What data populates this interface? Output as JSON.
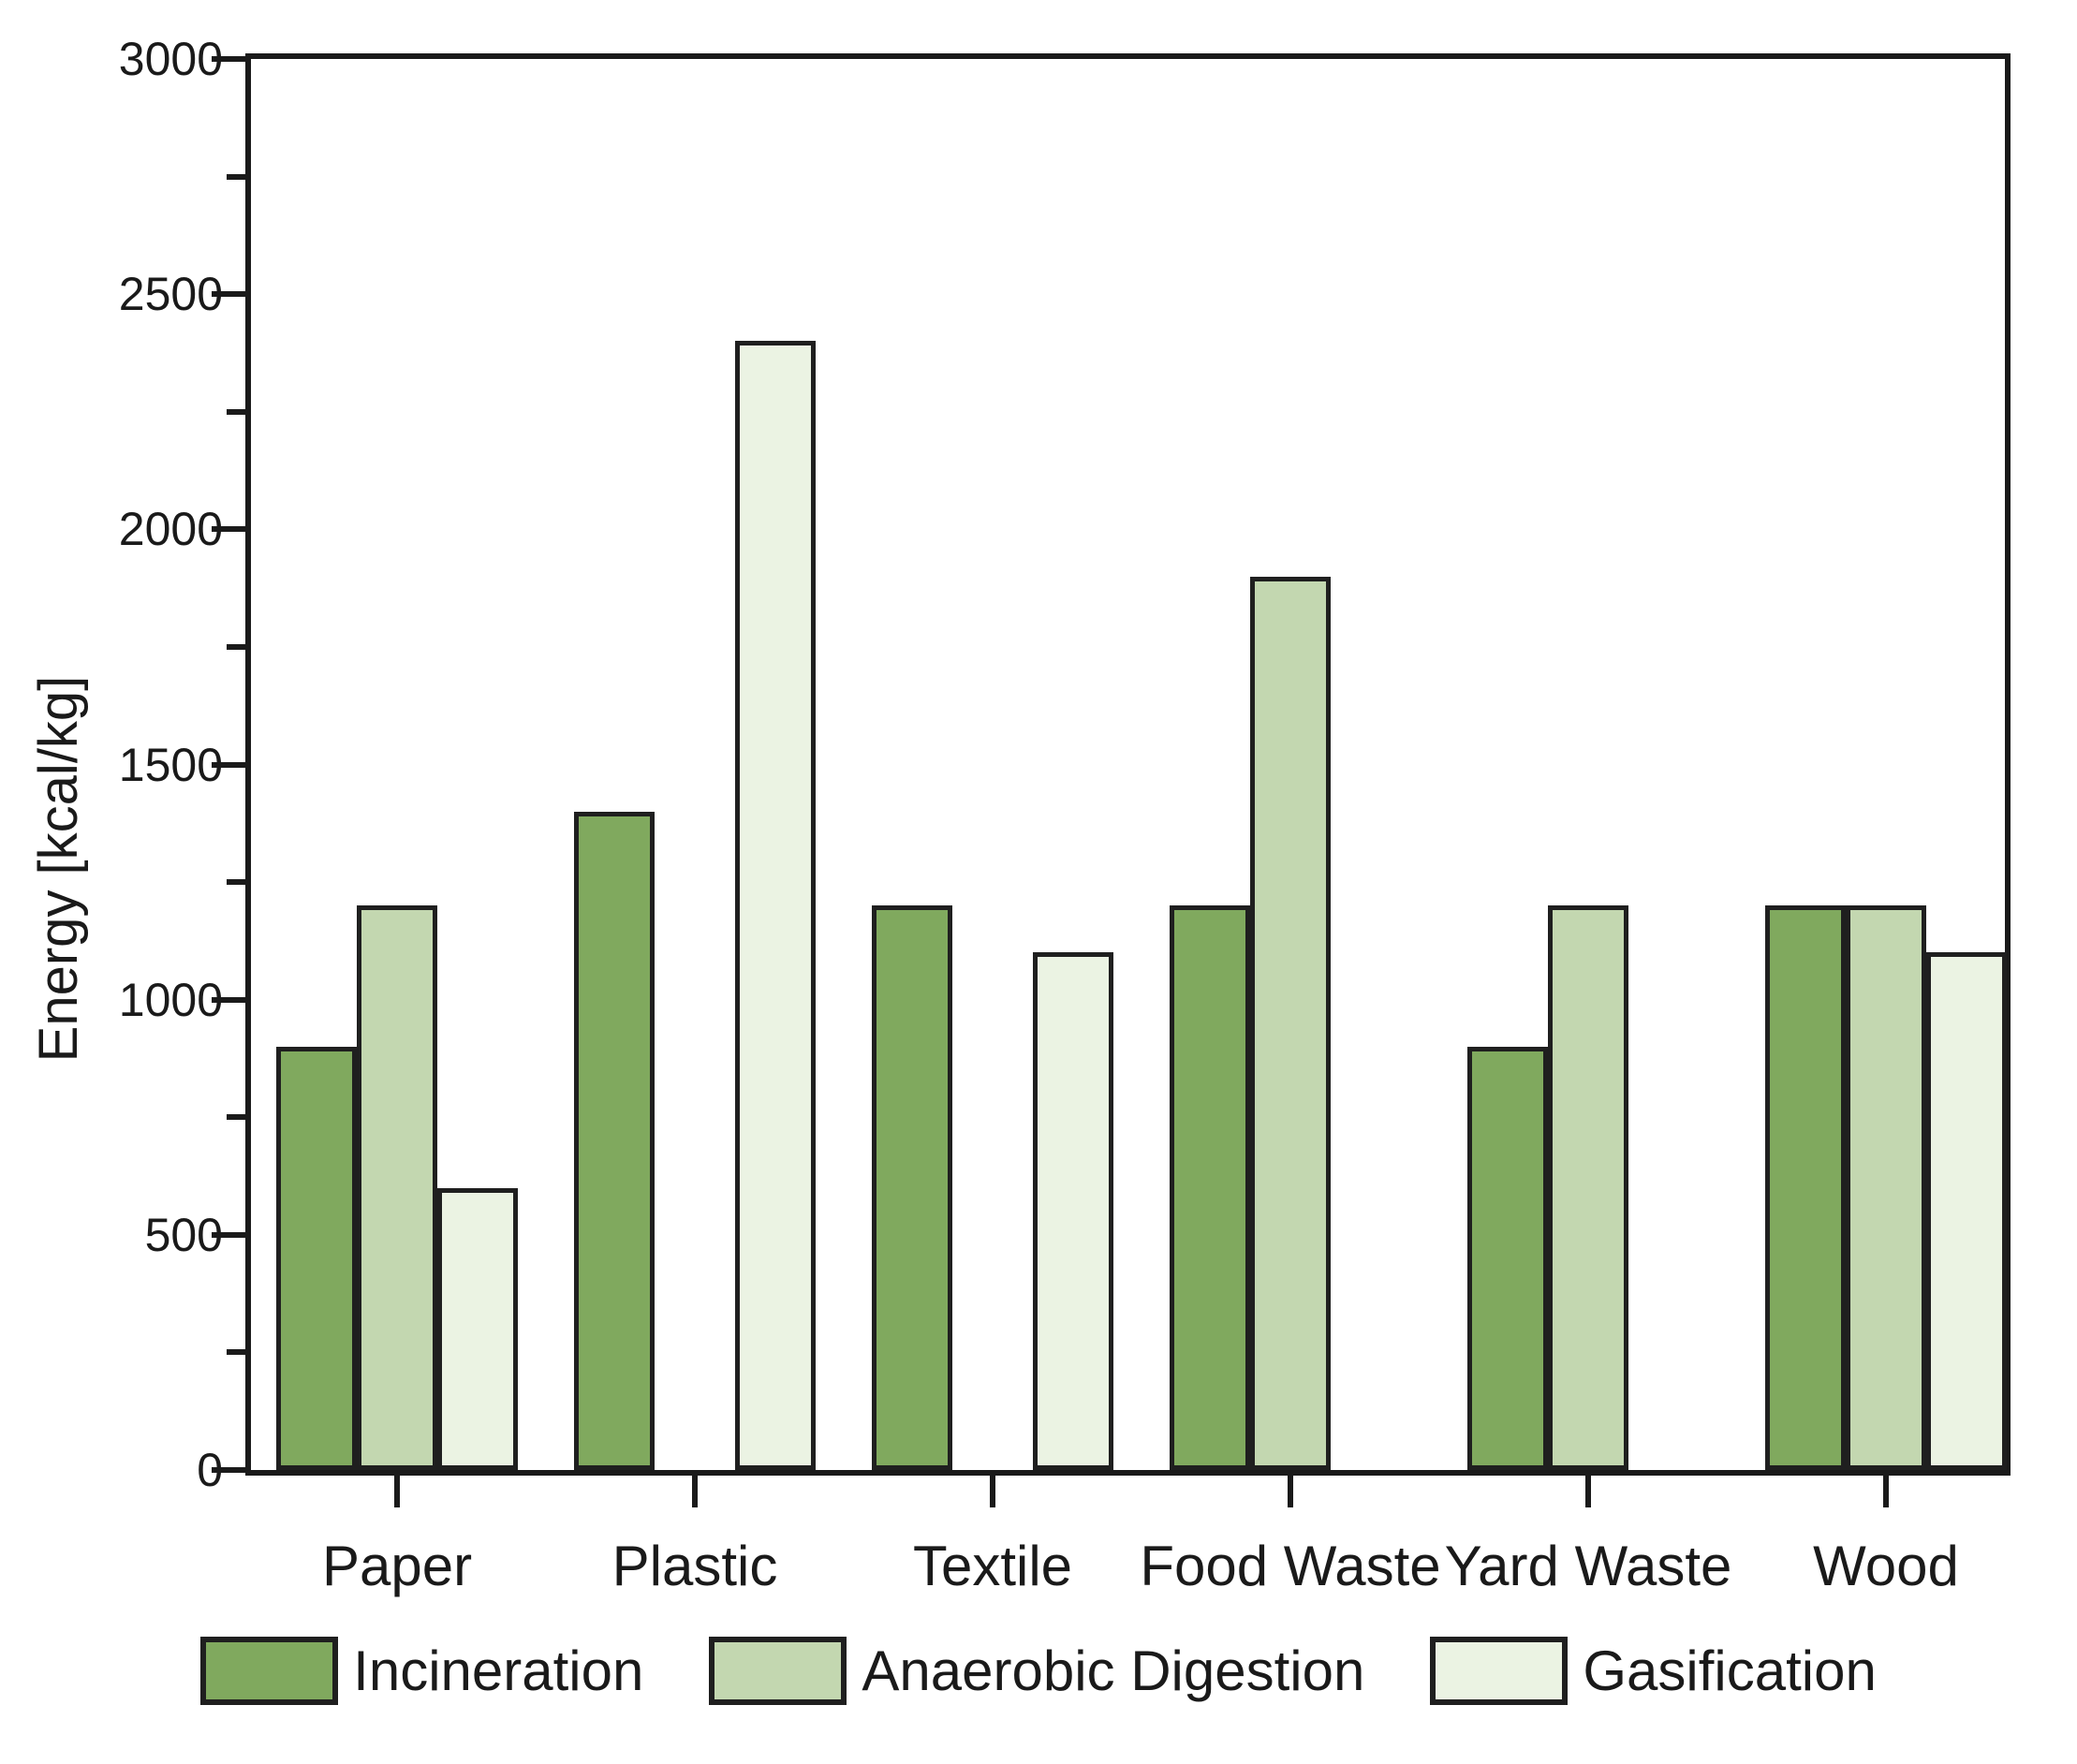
{
  "chart_data": {
    "type": "bar",
    "title": "",
    "ylabel": "Energy [kcal/kg]",
    "xlabel": "",
    "categories": [
      "Paper",
      "Plastic",
      "Textile",
      "Food Waste",
      "Yard Waste",
      "Wood"
    ],
    "series": [
      {
        "name": "Incineration",
        "color": "#80A95E",
        "values": [
          900,
          1400,
          1200,
          1200,
          900,
          1200
        ]
      },
      {
        "name": "Anaerobic Digestion",
        "color": "#C3D7B0",
        "values": [
          1200,
          null,
          null,
          1900,
          1200,
          1200
        ]
      },
      {
        "name": "Gasification",
        "color": "#EBF3E3",
        "values": [
          600,
          2400,
          1100,
          null,
          null,
          1100
        ]
      }
    ],
    "ylim": [
      0,
      3000
    ],
    "y_major_step": 500,
    "y_minor_step": 250,
    "y_tick_labels": [
      "0",
      "500",
      "1000",
      "1500",
      "2000",
      "2500",
      "3000"
    ],
    "grid": false,
    "legend_position": "bottom",
    "bar_border_color": "#1f1f1f",
    "axis_color": "#1a1a1a",
    "background_color": "#ffffff"
  }
}
